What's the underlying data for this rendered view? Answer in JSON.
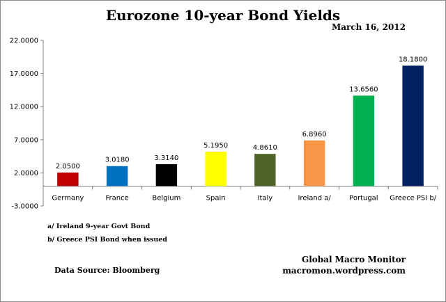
{
  "chart_data": {
    "type": "bar",
    "title": "Eurozone 10-year Bond Yields",
    "subtitle": "March 16, 2012",
    "categories": [
      "Germany",
      "France",
      "Belgium",
      "Spain",
      "Italy",
      "Ireland  a/",
      "Portugal",
      "Greece PSI b/"
    ],
    "values": [
      2.05,
      3.018,
      3.314,
      5.195,
      4.861,
      6.896,
      13.656,
      18.18
    ],
    "value_labels": [
      "2.0500",
      "3.0180",
      "3.3140",
      "5.1950",
      "4.8610",
      "6.8960",
      "13.6560",
      "18.1800"
    ],
    "colors": [
      "#c00000",
      "#0070c0",
      "#000000",
      "#ffff00",
      "#4f6228",
      "#f79646",
      "#00b050",
      "#002060"
    ],
    "ylim": [
      -3,
      22
    ],
    "yticks": [
      -3,
      2,
      7,
      12,
      17,
      22
    ],
    "ytick_labels": [
      "-3.0000",
      "2.0000",
      "7.0000",
      "12.0000",
      "17.0000",
      "22.0000"
    ],
    "xlabel": "",
    "ylabel": "",
    "grid": false,
    "legend": "none"
  },
  "notes": {
    "a": "a/ Ireland 9-year Govt Bond",
    "b": "b/  Greece PSI Bond  when issued"
  },
  "source": "Data Source:  Bloomberg",
  "credit": {
    "name": "Global Macro Monitor",
    "url": "macromon.wordpress.com"
  }
}
